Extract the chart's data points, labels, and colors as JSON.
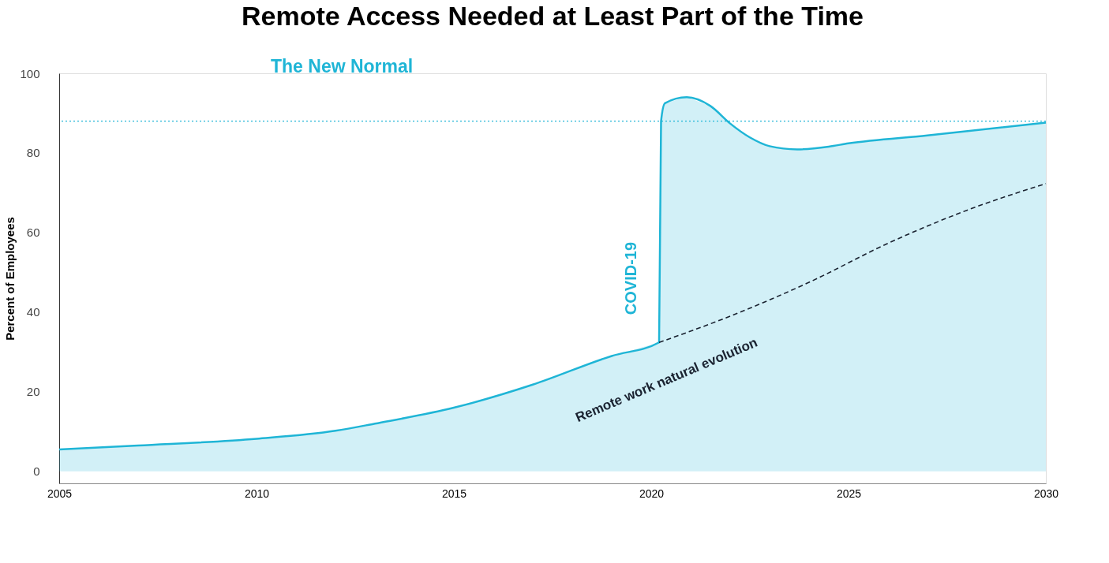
{
  "chart_data": {
    "type": "area",
    "title": "Remote Access Needed at Least Part of the Time",
    "ylabel": "Percent of Employees",
    "xlim": [
      2005,
      2030
    ],
    "xticks": [
      2005,
      2010,
      2015,
      2020,
      2025,
      2030
    ],
    "ylim": [
      -3,
      100
    ],
    "yticks": [
      0,
      20,
      40,
      60,
      80,
      100
    ],
    "grid": false,
    "series": [
      {
        "color": "#1fb5d6",
        "x": [
          2005,
          2007,
          2010,
          2012,
          2013,
          2015,
          2017,
          2019,
          2020.2,
          2020.25,
          2020.35,
          2020.9,
          2021.5,
          2022,
          2022.5,
          2023,
          2023.7,
          2024.5,
          2025,
          2027,
          2030
        ],
        "values": [
          5.5,
          6.5,
          8.2,
          10.2,
          12,
          16,
          21.8,
          29,
          32.4,
          88,
          92.5,
          94,
          91.8,
          87.4,
          83.9,
          81.7,
          80.9,
          81.6,
          82.4,
          84.4,
          87.6
        ]
      },
      {
        "name": "Remote work natural evolution",
        "type": "line",
        "line_style": "dashed",
        "color": "#1a2230",
        "x": [
          2020.2,
          2022,
          2024,
          2026,
          2028,
          2030
        ],
        "values": [
          32.4,
          39,
          47.5,
          57.3,
          65.6,
          72.3
        ]
      }
    ],
    "ref_lines": [
      {
        "axis": "y",
        "value": 88,
        "label": "The New Normal",
        "color": "#1fb5d6",
        "line_style": "dotted"
      }
    ],
    "annotations": [
      "COVID-19"
    ]
  }
}
